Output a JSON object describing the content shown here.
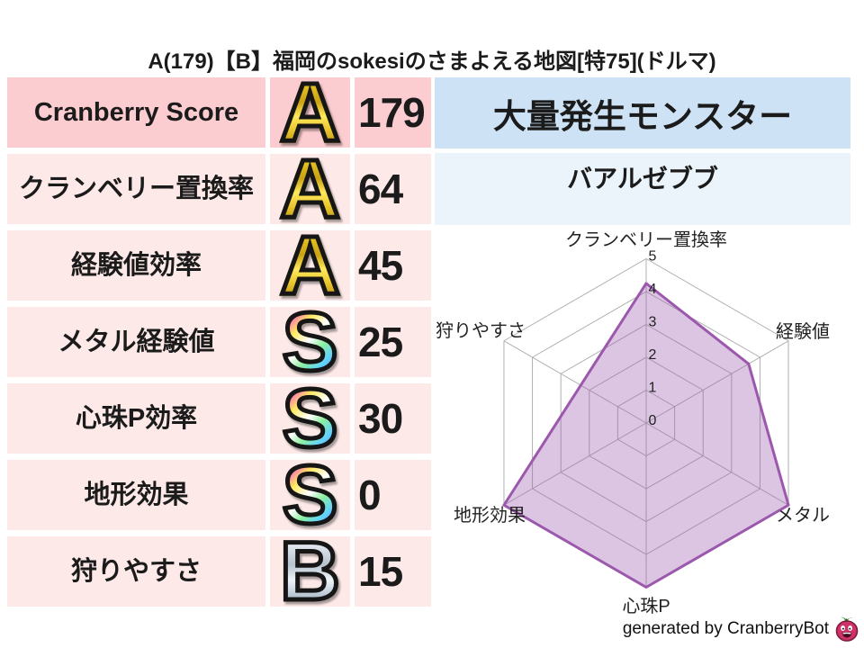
{
  "title": "A(179)【B】福岡のsokesiのさまよえる地図[特75](ドルマ)",
  "stats_table": {
    "rows": [
      {
        "label": "Cranberry Score",
        "grade": "A",
        "grade_style": "gold",
        "value": "179"
      },
      {
        "label": "クランベリー置換率",
        "grade": "A",
        "grade_style": "gold",
        "value": "64"
      },
      {
        "label": "経験値効率",
        "grade": "A",
        "grade_style": "gold",
        "value": "45"
      },
      {
        "label": "メタル経験値",
        "grade": "S",
        "grade_style": "rainbow",
        "value": "25"
      },
      {
        "label": "心珠P効率",
        "grade": "S",
        "grade_style": "rainbow",
        "value": "30"
      },
      {
        "label": "地形効果",
        "grade": "S",
        "grade_style": "rainbow",
        "value": "0"
      },
      {
        "label": "狩りやすさ",
        "grade": "B",
        "grade_style": "silver",
        "value": "15"
      }
    ]
  },
  "monster_panel": {
    "header": "大量発生モンスター",
    "name": "バアルゼブブ"
  },
  "chart_data": {
    "type": "radar",
    "categories": [
      "クランベリー置換率",
      "経験値",
      "メタル",
      "心珠P",
      "地形効果",
      "狩りやすさ"
    ],
    "values": [
      4.25,
      3.6,
      5,
      5,
      5,
      2.3
    ],
    "ticks": [
      0,
      1,
      2,
      3,
      4,
      5
    ],
    "max": 5,
    "grid": true,
    "grid_color": "#b0b0b0",
    "fill": "#9c59b0",
    "fill_opacity": 0.35,
    "stroke": "#9c58ac",
    "stroke_width": 3
  },
  "footer": {
    "credit": "generated by CranberryBot",
    "icon": "cranberry-icon"
  },
  "colors": {
    "row_highlight_pink": "#fbccd0",
    "row_pink": "#fdeae8",
    "header_blue": "#cde2f4",
    "value_blue": "#ebf3fb",
    "text": "#1b1b1b"
  }
}
